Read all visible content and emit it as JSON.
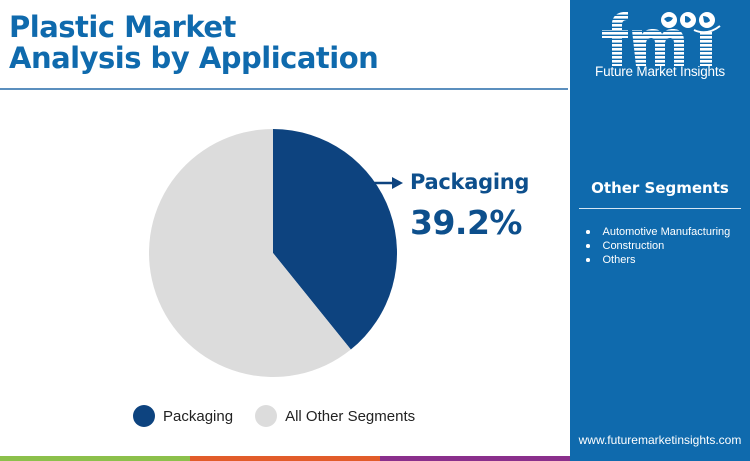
{
  "header": {
    "title_line1": "Plastic Market",
    "title_line2": "Analysis by Application"
  },
  "callout": {
    "label": "Packaging",
    "value": "39.2%",
    "arrow_icon": "arrow-right-icon"
  },
  "legend": {
    "items": [
      {
        "label": "Packaging",
        "color": "#0d437f"
      },
      {
        "label": "All Other Segments",
        "color": "#dcdcdc"
      }
    ]
  },
  "sidebar": {
    "logo_text": "fmi",
    "logo_caption": "Future Market Insights",
    "heading": "Other Segments",
    "items": [
      {
        "label": "Automotive Manufacturing"
      },
      {
        "label": "Construction"
      },
      {
        "label": "Others"
      }
    ],
    "url": "www.futuremarketinsights.com",
    "background": "#0f6aad"
  },
  "bottom_bar": {
    "colors": [
      "#8cc04b",
      "#e25c2a",
      "#8a2f8c"
    ]
  },
  "chart_data": {
    "type": "pie",
    "title": "Plastic Market Analysis by Application",
    "categories": [
      "Packaging",
      "All Other Segments"
    ],
    "values": [
      39.2,
      60.8
    ],
    "colors": [
      "#0d437f",
      "#dcdcdc"
    ],
    "start_angle_deg": 0,
    "direction": "clockwise",
    "annotations": [
      {
        "target": "Packaging",
        "text": "Packaging 39.2%"
      }
    ],
    "legend_position": "bottom"
  }
}
